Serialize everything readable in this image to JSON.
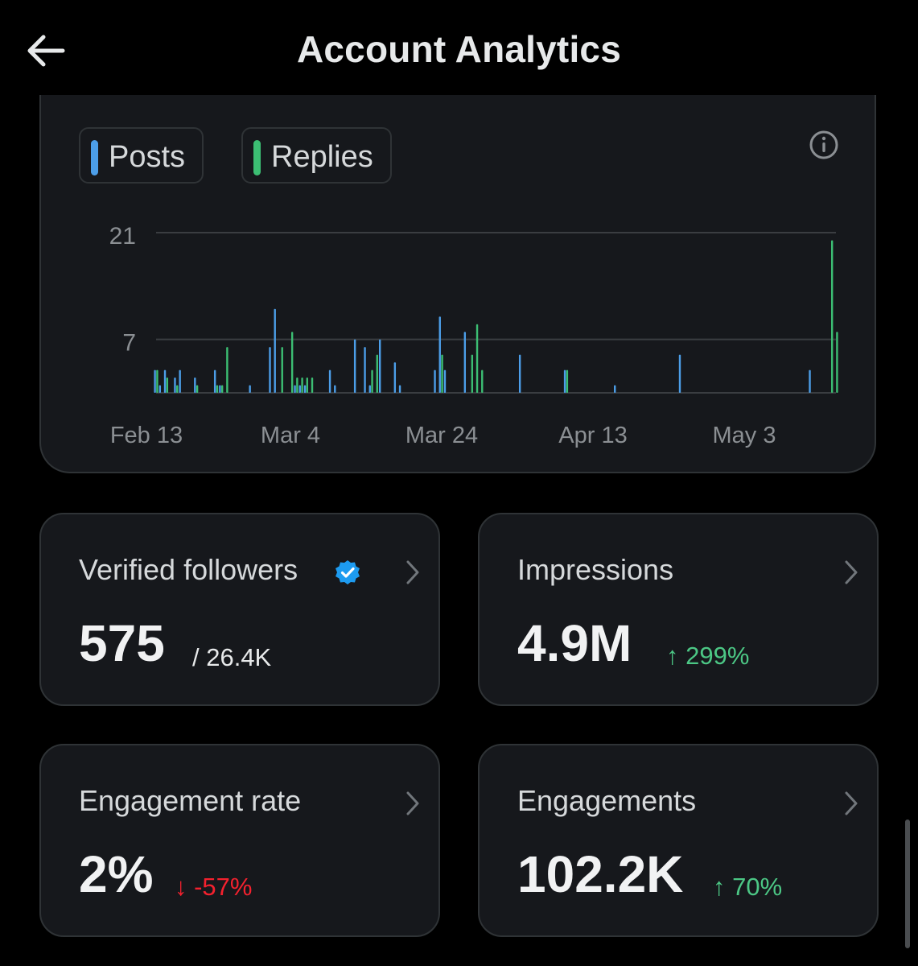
{
  "header": {
    "title": "Account Analytics",
    "back_icon": "arrow-left-icon"
  },
  "legend": {
    "posts": {
      "label": "Posts",
      "color": "#4c9ee8"
    },
    "replies": {
      "label": "Replies",
      "color": "#3cbe73"
    },
    "info_icon": "info-circle-icon"
  },
  "chart_data": {
    "type": "bar",
    "y_ticks": [
      "21",
      "7"
    ],
    "x_ticks": [
      "Feb 13",
      "Mar 4",
      "Mar 24",
      "Apr 13",
      "May 3"
    ],
    "ylim": [
      0,
      21
    ],
    "grid": true,
    "series": [
      {
        "name": "Posts",
        "color": "#4c9ee8",
        "values": [
          3,
          1,
          3,
          0,
          2,
          3,
          0,
          0,
          2,
          0,
          0,
          0,
          3,
          1,
          0,
          0,
          0,
          0,
          0,
          1,
          0,
          0,
          0,
          6,
          11,
          0,
          0,
          0,
          1,
          1,
          1,
          0,
          0,
          0,
          0,
          3,
          1,
          0,
          0,
          0,
          7,
          0,
          6,
          1,
          0,
          7,
          0,
          0,
          4,
          1,
          0,
          0,
          0,
          0,
          0,
          0,
          3,
          10,
          3,
          0,
          0,
          0,
          8,
          0,
          0,
          0,
          0,
          0,
          0,
          0,
          0,
          0,
          0,
          5,
          0,
          0,
          0,
          0,
          0,
          0,
          0,
          0,
          3,
          0,
          0,
          0,
          0,
          0,
          0,
          0,
          0,
          0,
          1,
          0,
          0,
          0,
          0,
          0,
          0,
          0,
          0,
          0,
          0,
          0,
          0,
          5,
          0,
          0,
          0,
          0,
          0,
          0,
          0,
          0,
          0,
          0,
          0,
          0,
          0,
          0,
          0,
          0,
          0,
          0,
          0,
          0,
          0,
          0,
          0,
          0,
          0,
          3
        ]
      },
      {
        "name": "Replies",
        "color": "#3cbe73",
        "values": [
          3,
          0,
          2,
          0,
          1,
          0,
          0,
          0,
          1,
          0,
          0,
          0,
          1,
          1,
          6,
          0,
          0,
          0,
          0,
          0,
          0,
          0,
          0,
          0,
          0,
          6,
          0,
          8,
          2,
          2,
          2,
          2,
          0,
          0,
          0,
          0,
          0,
          0,
          0,
          0,
          0,
          0,
          0,
          3,
          5,
          0,
          0,
          0,
          0,
          0,
          0,
          0,
          0,
          0,
          0,
          0,
          0,
          5,
          0,
          0,
          0,
          0,
          0,
          5,
          9,
          3,
          0,
          0,
          0,
          0,
          0,
          0,
          0,
          0,
          0,
          0,
          0,
          0,
          0,
          0,
          0,
          0,
          3,
          0,
          0,
          0,
          0,
          0,
          0,
          0,
          0,
          0,
          0,
          0,
          0,
          0,
          0,
          0,
          0,
          0,
          0,
          0,
          0,
          0,
          0,
          0,
          0,
          0,
          0,
          0,
          0,
          0,
          0,
          0,
          0,
          0,
          0,
          0,
          0,
          0,
          0,
          0,
          0,
          0,
          0,
          0,
          0,
          0,
          0,
          0,
          0,
          0,
          0,
          0,
          0,
          20,
          8
        ]
      }
    ]
  },
  "cards": {
    "followers": {
      "label": "Verified followers",
      "value": "575",
      "sub": "/ 26.4K",
      "verified_icon": "verified-badge-icon"
    },
    "impressions": {
      "label": "Impressions",
      "value": "4.9M",
      "delta": "↑ 299%",
      "delta_direction": "up"
    },
    "engagement_rate": {
      "label": "Engagement rate",
      "value": "2%",
      "delta": "↓ -57%",
      "delta_direction": "down"
    },
    "engagements": {
      "label": "Engagements",
      "value": "102.2K",
      "delta": "↑ 70%",
      "delta_direction": "up"
    }
  },
  "chevron_icon": "chevron-right-icon"
}
